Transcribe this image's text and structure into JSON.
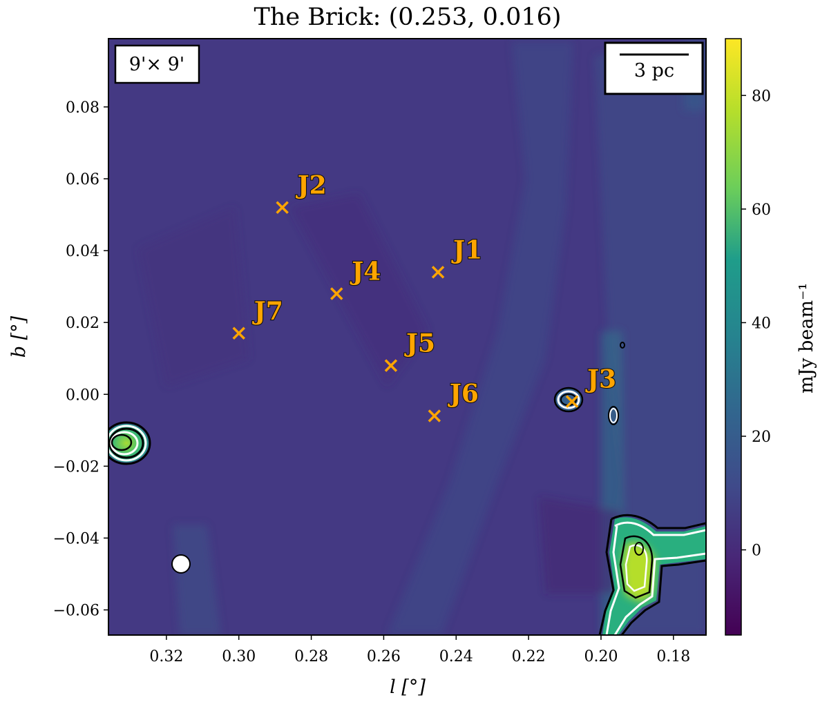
{
  "chart_data": {
    "type": "heatmap",
    "title": "The Brick: (0.253, 0.016)",
    "xlabel": "l [°]",
    "ylabel": "b [°]",
    "xlim": [
      0.336,
      0.171
    ],
    "ylim": [
      -0.067,
      0.099
    ],
    "x_ticks": [
      0.32,
      0.3,
      0.28,
      0.26,
      0.24,
      0.22,
      0.2,
      0.18
    ],
    "x_tick_labels": [
      "0.32",
      "0.30",
      "0.28",
      "0.26",
      "0.24",
      "0.22",
      "0.20",
      "0.18"
    ],
    "y_ticks": [
      0.08,
      0.06,
      0.04,
      0.02,
      0.0,
      -0.02,
      -0.04,
      -0.06
    ],
    "y_tick_labels": [
      "0.08",
      "0.06",
      "0.04",
      "0.02",
      "0.00",
      "−0.02",
      "−0.04",
      "−0.06"
    ],
    "colorbar": {
      "label": "mJy beam⁻¹",
      "range": [
        -15,
        90
      ],
      "ticks": [
        0,
        20,
        40,
        60,
        80
      ],
      "tick_labels": [
        "0",
        "20",
        "40",
        "60",
        "80"
      ],
      "colormap": "viridis"
    },
    "markers": [
      {
        "name": "J1",
        "l": 0.245,
        "b": 0.034
      },
      {
        "name": "J2",
        "l": 0.288,
        "b": 0.052
      },
      {
        "name": "J3",
        "l": 0.208,
        "b": -0.002
      },
      {
        "name": "J4",
        "l": 0.273,
        "b": 0.028
      },
      {
        "name": "J5",
        "l": 0.258,
        "b": 0.008
      },
      {
        "name": "J6",
        "l": 0.246,
        "b": -0.006
      },
      {
        "name": "J7",
        "l": 0.3,
        "b": 0.017
      }
    ],
    "marker_color": "#ffa500",
    "field_label": "9'× 9'",
    "scalebar_label": "3 pc",
    "grid": false
  }
}
